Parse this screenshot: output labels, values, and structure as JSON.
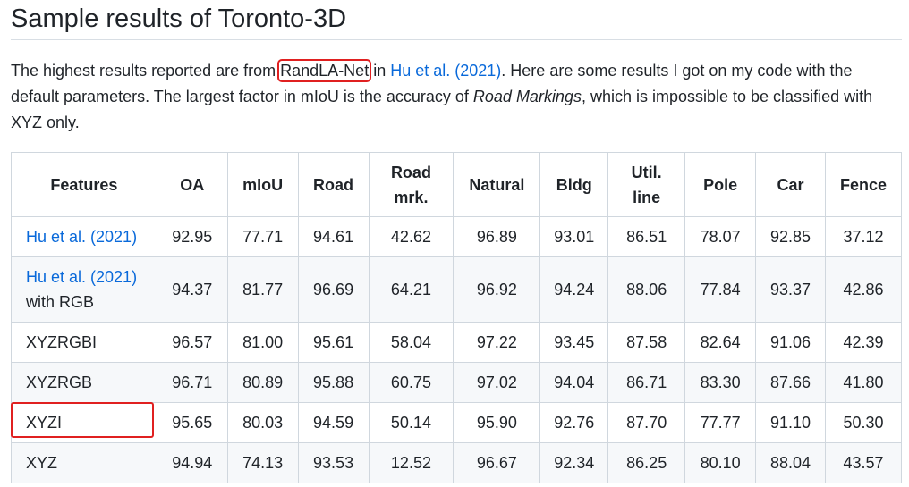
{
  "heading": "Sample results of Toronto-3D",
  "paragraph": {
    "p1": "The highest results reported are from ",
    "model": "RandLA-Net",
    "p2": " in ",
    "ref": "Hu et al. (2021)",
    "p3": ". Here are some results I got on my code with the default parameters. The largest factor in mIoU is the accuracy of ",
    "emph": "Road Markings",
    "p4": ", which is impossible to be classified with XYZ only."
  },
  "table": {
    "headers": {
      "features": "Features",
      "oa": "OA",
      "miou": "mIoU",
      "road": "Road",
      "road_mrk_1": "Road",
      "road_mrk_2": "mrk.",
      "natural": "Natural",
      "bldg": "Bldg",
      "util_1": "Util.",
      "util_2": "line",
      "pole": "Pole",
      "car": "Car",
      "fence": "Fence"
    },
    "rows": [
      {
        "feature": "Hu et al. (2021)",
        "oa": "92.95",
        "miou": "77.71",
        "road": "94.61",
        "road_mrk": "42.62",
        "natural": "96.89",
        "bldg": "93.01",
        "util": "86.51",
        "pole": "78.07",
        "car": "92.85",
        "fence": "37.12"
      },
      {
        "feature": "Hu et al. (2021)",
        "feature_suffix": "with RGB",
        "oa": "94.37",
        "miou": "81.77",
        "road": "96.69",
        "road_mrk": "64.21",
        "natural": "96.92",
        "bldg": "94.24",
        "util": "88.06",
        "pole": "77.84",
        "car": "93.37",
        "fence": "42.86"
      },
      {
        "feature": "XYZRGBI",
        "oa": "96.57",
        "miou": "81.00",
        "road": "95.61",
        "road_mrk": "58.04",
        "natural": "97.22",
        "bldg": "93.45",
        "util": "87.58",
        "pole": "82.64",
        "car": "91.06",
        "fence": "42.39"
      },
      {
        "feature": "XYZRGB",
        "oa": "96.71",
        "miou": "80.89",
        "road": "95.88",
        "road_mrk": "60.75",
        "natural": "97.02",
        "bldg": "94.04",
        "util": "86.71",
        "pole": "83.30",
        "car": "87.66",
        "fence": "41.80"
      },
      {
        "feature": "XYZI",
        "oa": "95.65",
        "miou": "80.03",
        "road": "94.59",
        "road_mrk": "50.14",
        "natural": "95.90",
        "bldg": "92.76",
        "util": "87.70",
        "pole": "77.77",
        "car": "91.10",
        "fence": "50.30"
      },
      {
        "feature": "XYZ",
        "oa": "94.94",
        "miou": "74.13",
        "road": "93.53",
        "road_mrk": "12.52",
        "natural": "96.67",
        "bldg": "92.34",
        "util": "86.25",
        "pole": "80.10",
        "car": "88.04",
        "fence": "43.57"
      }
    ]
  },
  "colors": {
    "link": "#0969da",
    "highlight": "#e02020",
    "stripe": "#f6f8fa",
    "border": "#d0d7de"
  }
}
